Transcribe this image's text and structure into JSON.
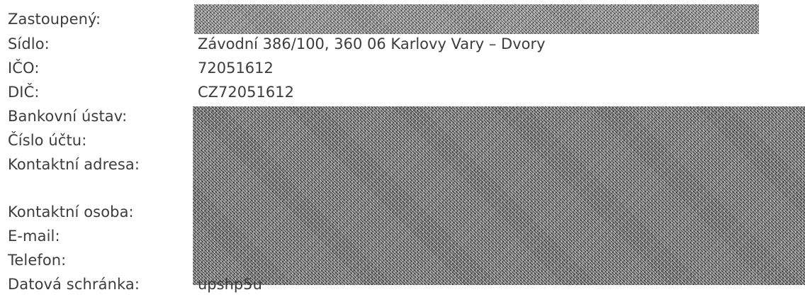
{
  "fields": [
    {
      "label": "Zastoupený:",
      "value": ""
    },
    {
      "label": "Sídlo:",
      "value": "Závodní 386/100, 360 06 Karlovy Vary – Dvory"
    },
    {
      "label": "IČO:",
      "value": "72051612"
    },
    {
      "label": "DIČ:",
      "value": "CZ72051612"
    },
    {
      "label": "Bankovní ústav:",
      "value": ""
    },
    {
      "label": "Číslo účtu:",
      "value": ""
    },
    {
      "label": "Kontaktní adresa:",
      "value": ""
    },
    {
      "label": "Kontaktní osoba:",
      "value": ""
    },
    {
      "label": "E-mail:",
      "value": ""
    },
    {
      "label": "Telefon:",
      "value": ""
    },
    {
      "label": "Datová schránka:",
      "value": "upshp5u"
    }
  ]
}
